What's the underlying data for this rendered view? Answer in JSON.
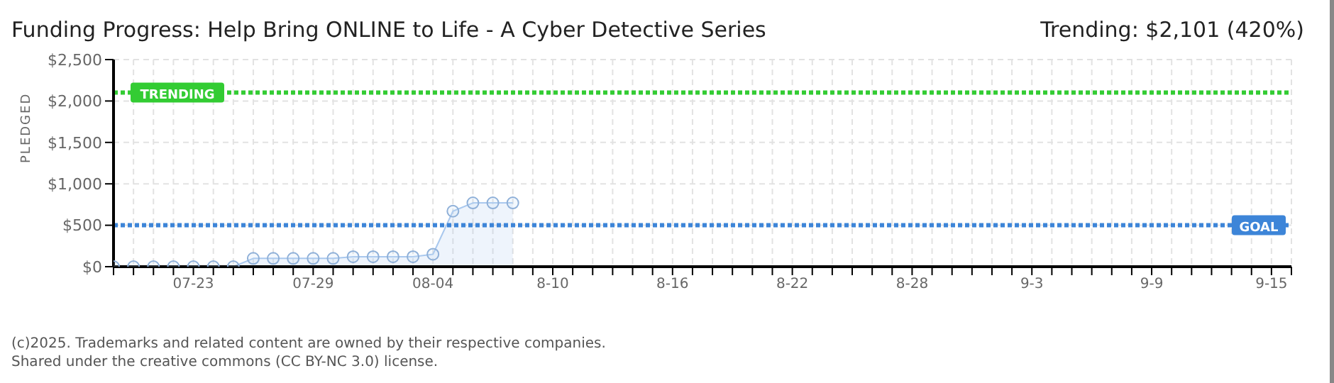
{
  "chart_data": {
    "type": "area",
    "title": "Funding Progress: Help Bring ONLINE to Life - A Cyber Detective Series",
    "subtitle": "Trending: $2,101 (420%)",
    "ylabel": "PLEDGED",
    "x": [
      "2025-07-19",
      "2025-07-20",
      "2025-07-21",
      "2025-07-22",
      "2025-07-23",
      "2025-07-24",
      "2025-07-25",
      "2025-07-26",
      "2025-07-27",
      "2025-07-28",
      "2025-07-29",
      "2025-07-30",
      "2025-07-31",
      "2025-08-01",
      "2025-08-02",
      "2025-08-03",
      "2025-08-04",
      "2025-08-05",
      "2025-08-06",
      "2025-08-07",
      "2025-08-08"
    ],
    "series": [
      {
        "color": "#a9c8ee",
        "values": [
          0,
          0,
          0,
          0,
          0,
          0,
          0,
          100,
          100,
          100,
          100,
          100,
          120,
          120,
          120,
          120,
          150,
          670,
          770,
          770,
          770
        ]
      }
    ],
    "xlim": [
      "2025-07-19",
      "2025-09-16"
    ],
    "xticks": [
      {
        "value": "2025-07-19",
        "label": null
      },
      {
        "value": "2025-07-20",
        "label": null
      },
      {
        "value": "2025-07-21",
        "label": null
      },
      {
        "value": "2025-07-22",
        "label": null
      },
      {
        "value": "2025-07-23",
        "label": "07-23"
      },
      {
        "value": "2025-07-24",
        "label": null
      },
      {
        "value": "2025-07-25",
        "label": null
      },
      {
        "value": "2025-07-26",
        "label": null
      },
      {
        "value": "2025-07-27",
        "label": null
      },
      {
        "value": "2025-07-28",
        "label": null
      },
      {
        "value": "2025-07-29",
        "label": "07-29"
      },
      {
        "value": "2025-07-30",
        "label": null
      },
      {
        "value": "2025-07-31",
        "label": null
      },
      {
        "value": "2025-08-01",
        "label": null
      },
      {
        "value": "2025-08-02",
        "label": null
      },
      {
        "value": "2025-08-03",
        "label": null
      },
      {
        "value": "2025-08-04",
        "label": "08-04"
      },
      {
        "value": "2025-08-05",
        "label": null
      },
      {
        "value": "2025-08-06",
        "label": null
      },
      {
        "value": "2025-08-07",
        "label": null
      },
      {
        "value": "2025-08-08",
        "label": null
      },
      {
        "value": "2025-08-09",
        "label": null
      },
      {
        "value": "2025-08-10",
        "label": "8-10"
      },
      {
        "value": "2025-08-11",
        "label": null
      },
      {
        "value": "2025-08-12",
        "label": null
      },
      {
        "value": "2025-08-13",
        "label": null
      },
      {
        "value": "2025-08-14",
        "label": null
      },
      {
        "value": "2025-08-15",
        "label": null
      },
      {
        "value": "2025-08-16",
        "label": "8-16"
      },
      {
        "value": "2025-08-17",
        "label": null
      },
      {
        "value": "2025-08-18",
        "label": null
      },
      {
        "value": "2025-08-19",
        "label": null
      },
      {
        "value": "2025-08-20",
        "label": null
      },
      {
        "value": "2025-08-21",
        "label": null
      },
      {
        "value": "2025-08-22",
        "label": "8-22"
      },
      {
        "value": "2025-08-23",
        "label": null
      },
      {
        "value": "2025-08-24",
        "label": null
      },
      {
        "value": "2025-08-25",
        "label": null
      },
      {
        "value": "2025-08-26",
        "label": null
      },
      {
        "value": "2025-08-27",
        "label": null
      },
      {
        "value": "2025-08-28",
        "label": "8-28"
      },
      {
        "value": "2025-08-29",
        "label": null
      },
      {
        "value": "2025-08-30",
        "label": null
      },
      {
        "value": "2025-08-31",
        "label": null
      },
      {
        "value": "2025-09-01",
        "label": null
      },
      {
        "value": "2025-09-02",
        "label": null
      },
      {
        "value": "2025-09-03",
        "label": "9-3"
      },
      {
        "value": "2025-09-04",
        "label": null
      },
      {
        "value": "2025-09-05",
        "label": null
      },
      {
        "value": "2025-09-06",
        "label": null
      },
      {
        "value": "2025-09-07",
        "label": null
      },
      {
        "value": "2025-09-08",
        "label": null
      },
      {
        "value": "2025-09-09",
        "label": "9-9"
      },
      {
        "value": "2025-09-10",
        "label": null
      },
      {
        "value": "2025-09-11",
        "label": null
      },
      {
        "value": "2025-09-12",
        "label": null
      },
      {
        "value": "2025-09-13",
        "label": null
      },
      {
        "value": "2025-09-14",
        "label": null
      },
      {
        "value": "2025-09-15",
        "label": "9-15"
      },
      {
        "value": "2025-09-16",
        "label": null
      }
    ],
    "ylim": [
      0,
      2500
    ],
    "yticks": [
      {
        "value": 0,
        "label": "$0"
      },
      {
        "value": 500,
        "label": "$500"
      },
      {
        "value": 1000,
        "label": "$1,000"
      },
      {
        "value": 1500,
        "label": "$1,500"
      },
      {
        "value": 2000,
        "label": "$2,000"
      },
      {
        "value": 2500,
        "label": "$2,500"
      }
    ],
    "ref_lines": [
      {
        "axis": "y",
        "value": 2101,
        "label": "TRENDING",
        "color": "#33cc33",
        "line_style": "dotted"
      },
      {
        "axis": "y",
        "value": 500,
        "label": "GOAL",
        "color": "#3d85d8",
        "line_style": "dotted"
      }
    ],
    "grid": true,
    "marker": "circle",
    "annotations": [
      "(c)2025. Trademarks and related content are owned by their respective companies.",
      "Shared under the creative commons (CC BY-NC 3.0) license."
    ]
  }
}
